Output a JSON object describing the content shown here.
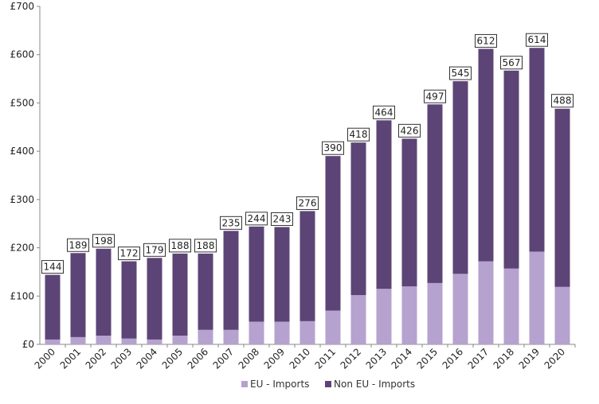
{
  "chart_data": {
    "type": "bar",
    "stacked": true,
    "categories": [
      "2000",
      "2001",
      "2002",
      "2003",
      "2004",
      "2005",
      "2006",
      "2007",
      "2008",
      "2009",
      "2010",
      "2011",
      "2012",
      "2013",
      "2014",
      "2015",
      "2016",
      "2017",
      "2018",
      "2019",
      "2020"
    ],
    "series": [
      {
        "name": "EU - Imports",
        "color": "#b5a2cf",
        "values": [
          10,
          15,
          18,
          12,
          10,
          18,
          30,
          30,
          47,
          47,
          48,
          70,
          102,
          115,
          120,
          127,
          146,
          172,
          157,
          192,
          119
        ]
      },
      {
        "name": "Non EU - Imports",
        "color": "#5c4477",
        "values": [
          134,
          174,
          180,
          160,
          169,
          170,
          158,
          205,
          197,
          196,
          228,
          320,
          316,
          349,
          306,
          370,
          399,
          440,
          410,
          422,
          369
        ]
      }
    ],
    "totals": [
      "144",
      "189",
      "198",
      "172",
      "179",
      "188",
      "188",
      "235",
      "244",
      "243",
      "276",
      "390",
      "418",
      "464",
      "426",
      "497",
      "545",
      "612",
      "567",
      "614",
      "488"
    ],
    "y_ticks": [
      "£0",
      "£100",
      "£200",
      "£300",
      "£400",
      "£500",
      "£600",
      "£700"
    ],
    "ylim": [
      0,
      700
    ],
    "grid": false,
    "legend_position": "bottom"
  }
}
